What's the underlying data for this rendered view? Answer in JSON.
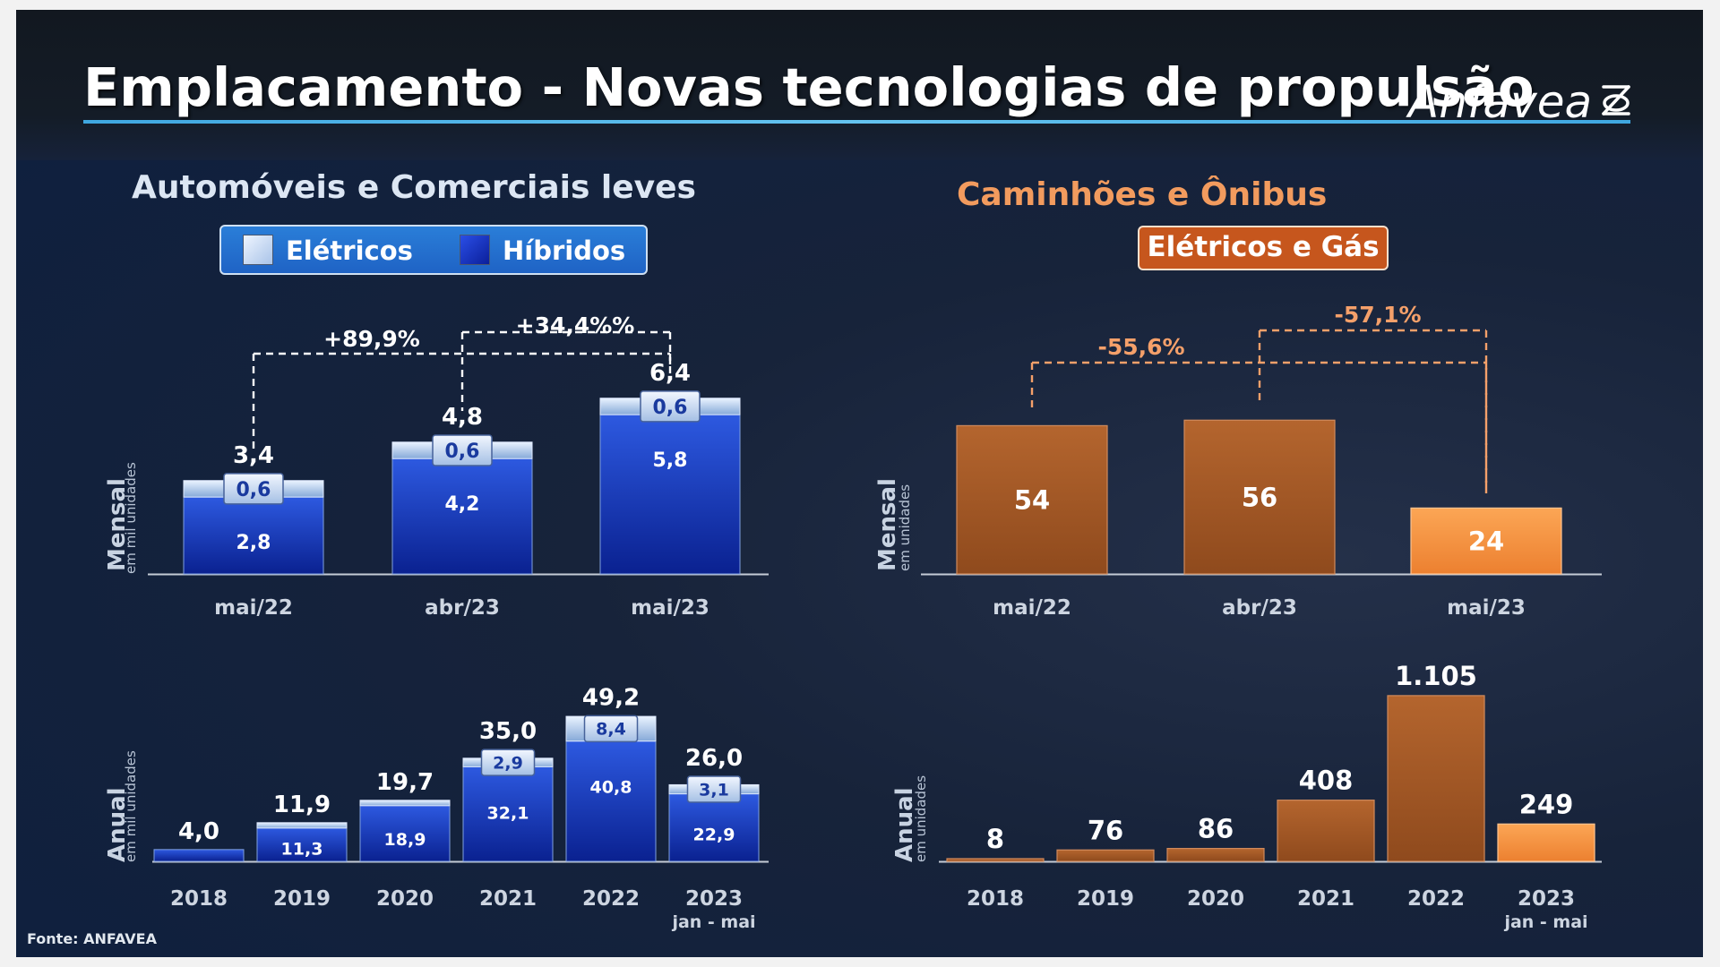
{
  "header": {
    "title": "Emplacamento - Novas tecnologias de propulsão",
    "brand": "Anfavea"
  },
  "sections": {
    "left_title": "Automóveis e Comerciais leves",
    "right_title": "Caminhões e Ônibus",
    "right_subtitle": "Elétricos e Gás"
  },
  "legend_left": {
    "eletricos": "Elétricos",
    "hibridos": "Híbridos"
  },
  "labels": {
    "mensal": "Mensal",
    "anual": "Anual",
    "unit_left": "em mil unidades",
    "unit_right": "em  unidades",
    "period_note": "jan - mai"
  },
  "footer": {
    "source": "Fonte: ANFAVEA"
  },
  "colors": {
    "hibridos": "#1637b4",
    "eletricos": "#bcd4f2",
    "heavy": "#a65a28",
    "heavy_highlight": "#f5923e",
    "bracket_left": "#ffffff",
    "bracket_right": "#f5a06a"
  },
  "chart_data": [
    {
      "type": "bar",
      "stacked": true,
      "panel": "Automóveis e Comerciais leves - Mensal",
      "categories": [
        "mai/22",
        "abr/23",
        "mai/23"
      ],
      "series": [
        {
          "name": "Híbridos",
          "values": [
            2.8,
            4.2,
            5.8
          ],
          "labels": [
            "2,8",
            "4,2",
            "5,8"
          ]
        },
        {
          "name": "Elétricos",
          "values": [
            0.6,
            0.6,
            0.6
          ],
          "labels": [
            "0,6",
            "0,6",
            "0,6"
          ]
        }
      ],
      "totals": [
        3.4,
        4.8,
        6.4
      ],
      "total_labels": [
        "3,4",
        "4,8",
        "6,4"
      ],
      "ylim": [
        0,
        7.5
      ],
      "comparisons": [
        {
          "from": 0,
          "to": 2,
          "label": "+89,9%"
        },
        {
          "from": 1,
          "to": 2,
          "label": "+34,4%%"
        }
      ]
    },
    {
      "type": "bar",
      "stacked": true,
      "panel": "Automóveis e Comerciais leves - Anual",
      "categories": [
        "2018",
        "2019",
        "2020",
        "2021",
        "2022",
        "2023"
      ],
      "series": [
        {
          "name": "Híbridos",
          "values": [
            4.0,
            11.3,
            18.9,
            32.1,
            40.8,
            22.9
          ],
          "labels": [
            "",
            "11,3",
            "18,9",
            "32,1",
            "40,8",
            "22,9"
          ]
        },
        {
          "name": "Elétricos",
          "values": [
            0,
            0.6,
            0.8,
            2.9,
            8.4,
            3.1
          ],
          "labels": [
            "",
            "",
            "",
            "2,9",
            "8,4",
            "3,1"
          ]
        }
      ],
      "totals": [
        4.0,
        11.9,
        19.7,
        35.0,
        49.2,
        26.0
      ],
      "total_labels": [
        "4,0",
        "11,9",
        "19,7",
        "35,0",
        "49,2",
        "26,0"
      ],
      "ylim": [
        0,
        55
      ]
    },
    {
      "type": "bar",
      "panel": "Caminhões e Ônibus - Mensal",
      "categories": [
        "mai/22",
        "abr/23",
        "mai/23"
      ],
      "values": [
        54,
        56,
        24
      ],
      "value_labels": [
        "54",
        "56",
        "24"
      ],
      "ylim": [
        0,
        75
      ],
      "comparisons": [
        {
          "from": 0,
          "to": 2,
          "label": "-55,6%"
        },
        {
          "from": 1,
          "to": 2,
          "label": "-57,1%"
        }
      ]
    },
    {
      "type": "bar",
      "panel": "Caminhões e Ônibus - Anual",
      "categories": [
        "2018",
        "2019",
        "2020",
        "2021",
        "2022",
        "2023"
      ],
      "values": [
        8,
        76,
        86,
        408,
        1105,
        249
      ],
      "value_labels": [
        "8",
        "76",
        "86",
        "408",
        "1.105",
        "249"
      ],
      "ylim": [
        0,
        1200
      ]
    }
  ]
}
